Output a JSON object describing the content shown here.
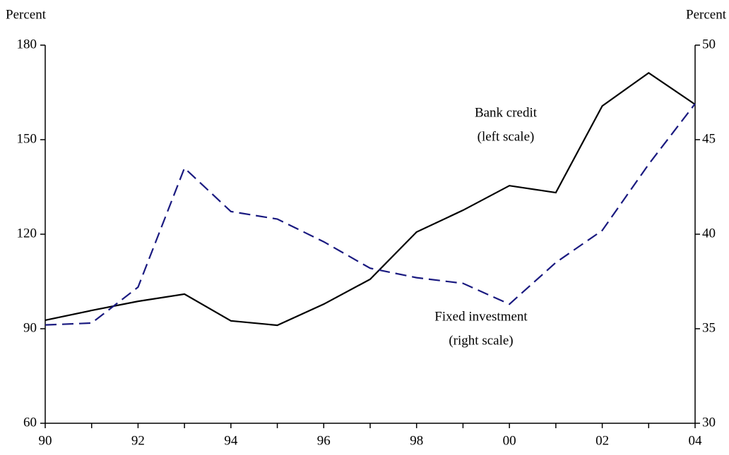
{
  "chart_data": {
    "type": "line",
    "y_label": "Percent",
    "y2_label": "Percent",
    "categories": [
      "90",
      null,
      "92",
      null,
      "94",
      null,
      "96",
      null,
      "98",
      null,
      "00",
      null,
      "02",
      null,
      "04"
    ],
    "series": [
      {
        "name": "Bank credit",
        "color": "#000000",
        "dashed": false,
        "axis": "y",
        "values": [
          92.7,
          95.8,
          98.7,
          101,
          92.5,
          91.1,
          97.8,
          105.7,
          120.7,
          127.6,
          135.4,
          133.2,
          160.7,
          171.2,
          161.2
        ]
      },
      {
        "name": "Fixed investment",
        "color": "#1a1a80",
        "dashed": true,
        "axis": "y2",
        "values": [
          35.2,
          35.3,
          37.2,
          43.5,
          41.2,
          40.8,
          39.6,
          38.2,
          37.7,
          37.4,
          36.3,
          38.5,
          40.2,
          43.7,
          46.9
        ]
      }
    ],
    "annotations": [
      [
        "Bank credit",
        "(left scale)"
      ],
      [
        "Fixed investment",
        "(right scale)"
      ]
    ],
    "ylim": [
      60,
      180
    ],
    "yticks": [
      60,
      90,
      120,
      150,
      180
    ],
    "y2lim": [
      30,
      50
    ],
    "y2ticks": [
      30,
      35,
      40,
      45,
      50
    ],
    "grid": false
  }
}
